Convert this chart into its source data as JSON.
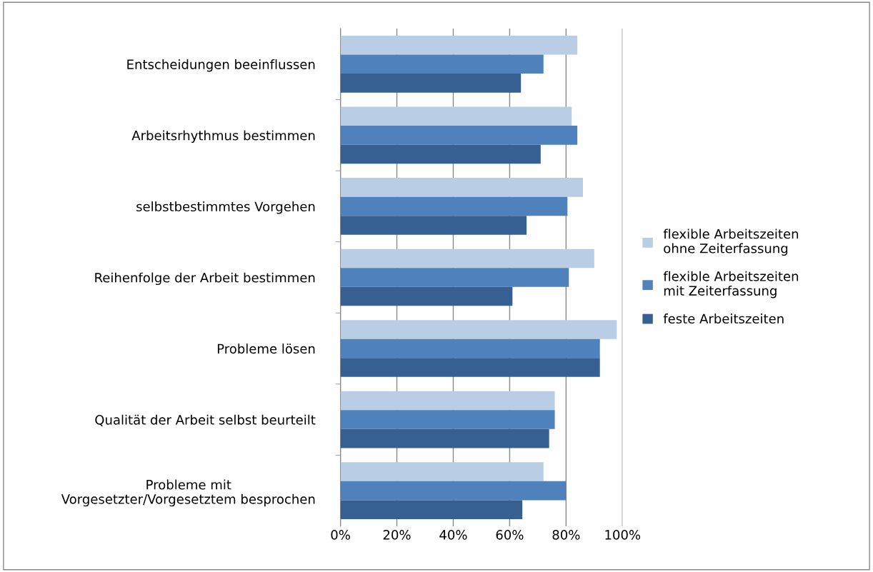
{
  "chart_data": {
    "type": "bar",
    "orientation": "horizontal",
    "categories": [
      "Entscheidungen beeinflussen",
      "Arbeitsrhythmus bestimmen",
      "selbstbestimmtes Vorgehen",
      "Reihenfolge der Arbeit bestimmen",
      "Probleme lösen",
      "Qualität der Arbeit selbst beurteilt",
      "Probleme mit\nVorgesetzter/Vorgesetztem besprochen"
    ],
    "series": [
      {
        "name": "flexible Arbeitszeiten\nohne Zeiterfassung",
        "color": "#b9cde5",
        "values": [
          84,
          82,
          86,
          90,
          98,
          76,
          72
        ]
      },
      {
        "name": "flexible Arbeitszeiten\nmit Zeiterfassung",
        "color": "#4f81bd",
        "values": [
          72,
          84,
          80.5,
          81,
          92,
          76,
          80
        ]
      },
      {
        "name": "feste Arbeitszeiten",
        "color": "#376092",
        "values": [
          64,
          71,
          66,
          61,
          92,
          74,
          64.5
        ]
      }
    ],
    "xlim": [
      0,
      100
    ],
    "xticks": [
      {
        "value": 0,
        "label": "0%"
      },
      {
        "value": 20,
        "label": "20%"
      },
      {
        "value": 40,
        "label": "40%"
      },
      {
        "value": 60,
        "label": "60%"
      },
      {
        "value": 80,
        "label": "80%"
      },
      {
        "value": 100,
        "label": "100%"
      }
    ],
    "grid": "x",
    "legend": "right"
  }
}
